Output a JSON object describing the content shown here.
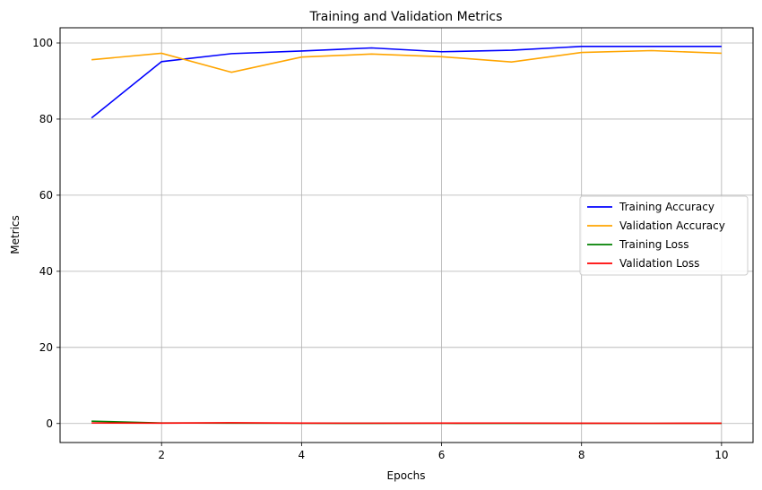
{
  "chart_data": {
    "type": "line",
    "title": "Training and Validation Metrics",
    "xlabel": "Epochs",
    "ylabel": "Metrics",
    "xlim": [
      0.55,
      10.45
    ],
    "ylim": [
      -5,
      104
    ],
    "xticks": [
      2,
      4,
      6,
      8,
      10
    ],
    "yticks": [
      0,
      20,
      40,
      60,
      80,
      100
    ],
    "grid": true,
    "legend_position": "center-right",
    "x": [
      1,
      2,
      3,
      4,
      5,
      6,
      7,
      8,
      9,
      10
    ],
    "series": [
      {
        "name": "Training Accuracy",
        "color": "#0000ff",
        "values": [
          80.3,
          95.1,
          97.2,
          97.9,
          98.7,
          97.7,
          98.1,
          99.1,
          99.1,
          99.1
        ]
      },
      {
        "name": "Validation Accuracy",
        "color": "#ffa500",
        "values": [
          95.6,
          97.3,
          92.3,
          96.3,
          97.1,
          96.4,
          95.0,
          97.5,
          98.0,
          97.3
        ]
      },
      {
        "name": "Training Loss",
        "color": "#008000",
        "values": [
          0.6,
          0.15,
          0.1,
          0.07,
          0.04,
          0.06,
          0.05,
          0.03,
          0.03,
          0.03
        ]
      },
      {
        "name": "Validation Loss",
        "color": "#ff0000",
        "values": [
          0.15,
          0.1,
          0.2,
          0.1,
          0.09,
          0.1,
          0.12,
          0.08,
          0.06,
          0.08
        ]
      }
    ]
  }
}
